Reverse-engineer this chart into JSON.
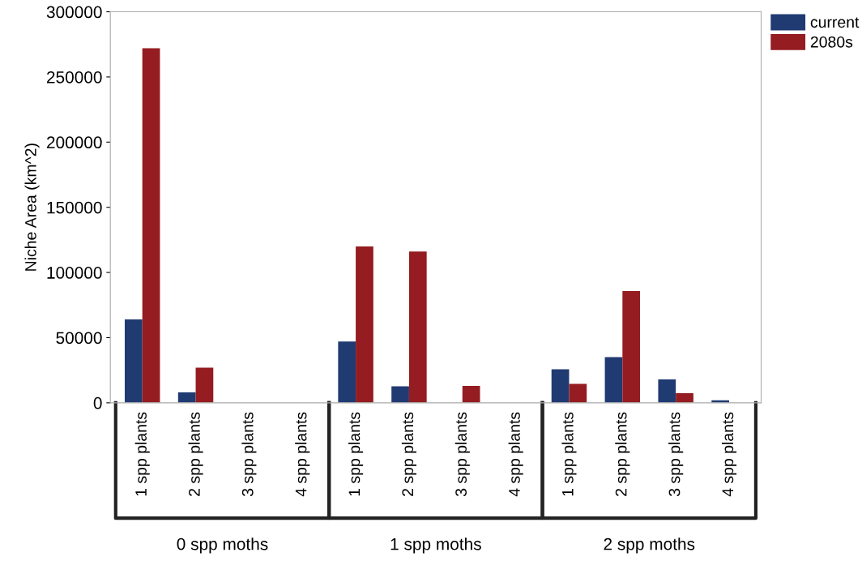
{
  "chart_data": {
    "type": "bar",
    "ylabel": "Niche Area (km^2)",
    "categories": [
      "1 spp plants",
      "2 spp plants",
      "3 spp plants",
      "4 spp plants",
      "1 spp plants",
      "2 spp plants",
      "3 spp plants",
      "4 spp plants",
      "1 spp plants",
      "2 spp plants",
      "3 spp plants",
      "4 spp plants"
    ],
    "series": [
      {
        "name": "current",
        "color": "#203a72",
        "values": [
          64000,
          8000,
          null,
          null,
          47000,
          12600,
          null,
          null,
          25700,
          35000,
          18000,
          1900
        ]
      },
      {
        "name": "2080s",
        "color": "#951c20",
        "values": [
          272000,
          27000,
          null,
          null,
          120000,
          116000,
          13000,
          null,
          14500,
          85800,
          7300,
          null
        ]
      }
    ],
    "annotations": [
      "0 spp moths",
      "1 spp moths",
      "2 spp moths"
    ],
    "ylim": [
      0,
      300000
    ],
    "yticks": [
      0,
      50000,
      100000,
      150000,
      200000,
      250000,
      300000
    ],
    "grid": false,
    "legend": "top right"
  }
}
